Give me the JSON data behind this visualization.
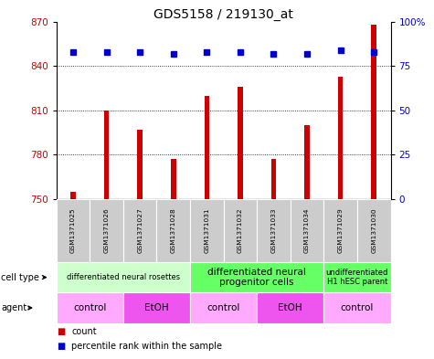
{
  "title": "GDS5158 / 219130_at",
  "samples": [
    "GSM1371025",
    "GSM1371026",
    "GSM1371027",
    "GSM1371028",
    "GSM1371031",
    "GSM1371032",
    "GSM1371033",
    "GSM1371034",
    "GSM1371029",
    "GSM1371030"
  ],
  "counts": [
    755,
    810,
    797,
    777,
    820,
    826,
    777,
    800,
    833,
    868
  ],
  "percentiles": [
    83,
    83,
    83,
    82,
    83,
    83,
    82,
    82,
    84,
    83
  ],
  "ylim_left": [
    750,
    870
  ],
  "ylim_right": [
    0,
    100
  ],
  "yticks_left": [
    750,
    780,
    810,
    840,
    870
  ],
  "yticks_right": [
    0,
    25,
    50,
    75,
    100
  ],
  "grid_values": [
    780,
    810,
    840
  ],
  "cell_type_groups": [
    {
      "label": "differentiated neural rosettes",
      "start": 0,
      "end": 4,
      "color": "#ccffcc",
      "fontsize": 6
    },
    {
      "label": "differentiated neural\nprogenitor cells",
      "start": 4,
      "end": 8,
      "color": "#66ff66",
      "fontsize": 7.5
    },
    {
      "label": "undifferentiated\nH1 hESC parent",
      "start": 8,
      "end": 10,
      "color": "#66ff66",
      "fontsize": 6
    }
  ],
  "agent_groups": [
    {
      "label": "control",
      "start": 0,
      "end": 2,
      "color": "#ffaaff"
    },
    {
      "label": "EtOH",
      "start": 2,
      "end": 4,
      "color": "#ee55ee"
    },
    {
      "label": "control",
      "start": 4,
      "end": 6,
      "color": "#ffaaff"
    },
    {
      "label": "EtOH",
      "start": 6,
      "end": 8,
      "color": "#ee55ee"
    },
    {
      "label": "control",
      "start": 8,
      "end": 10,
      "color": "#ffaaff"
    }
  ],
  "bar_color": "#cc0000",
  "dot_color": "#0000cc",
  "bar_bottom": 750,
  "bar_width": 0.15,
  "tick_label_color_left": "#cc0000",
  "tick_label_color_right": "#0000cc",
  "sample_box_color": "#cccccc",
  "legend_items": [
    {
      "label": "count",
      "color": "#cc0000"
    },
    {
      "label": "percentile rank within the sample",
      "color": "#0000cc"
    }
  ]
}
